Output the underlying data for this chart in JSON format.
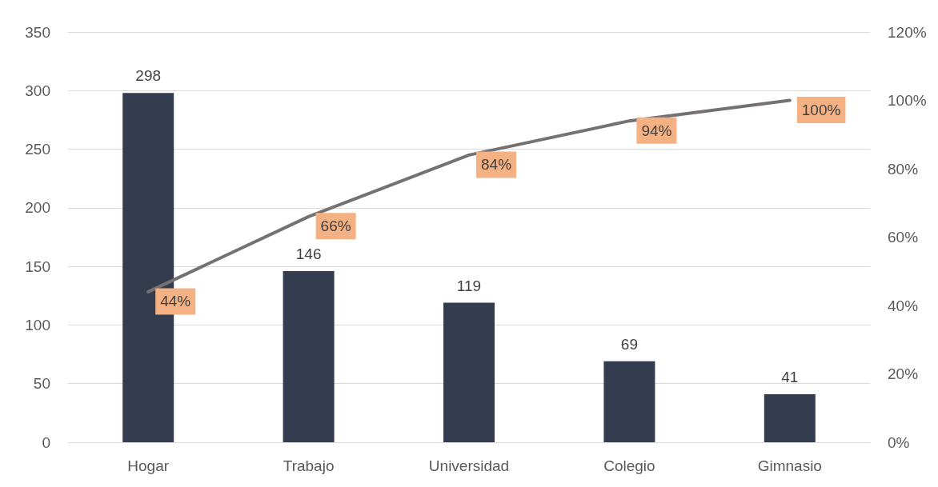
{
  "chart_data": {
    "type": "bar",
    "categories": [
      "Hogar",
      "Trabajo",
      "Universidad",
      "Colegio",
      "Gimnasio"
    ],
    "series": [
      {
        "color": "#333d4f",
        "values": [
          298,
          146,
          119,
          69,
          41
        ],
        "value_labels": [
          "298",
          "146",
          "119",
          "69",
          "41"
        ]
      },
      {
        "type": "line",
        "axis": "y2",
        "color": "#767171",
        "values": [
          44,
          66,
          84,
          94,
          100
        ],
        "value_labels": [
          "44%",
          "66%",
          "84%",
          "94%",
          "100%"
        ]
      }
    ],
    "ylim": [
      0,
      350
    ],
    "yticks": [
      0,
      50,
      100,
      150,
      200,
      250,
      300,
      350
    ],
    "y2lim": [
      0,
      120
    ],
    "y2ticks": [
      {
        "value": 0,
        "label": "0%"
      },
      {
        "value": 20,
        "label": "20%"
      },
      {
        "value": 40,
        "label": "40%"
      },
      {
        "value": 60,
        "label": "60%"
      },
      {
        "value": 80,
        "label": "80%"
      },
      {
        "value": 100,
        "label": "100%"
      },
      {
        "value": 120,
        "label": "120%"
      }
    ],
    "grid": "y",
    "marker": "none",
    "line_style": "solid"
  }
}
